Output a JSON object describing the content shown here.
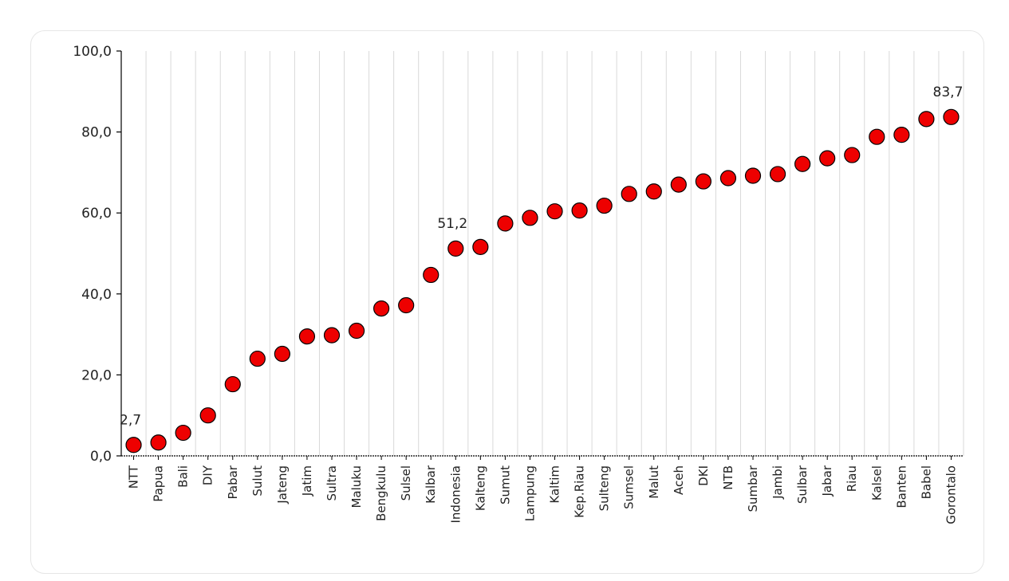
{
  "chart_data": {
    "type": "scatter",
    "title": "",
    "xlabel": "",
    "ylabel": "",
    "ylim": [
      0,
      100
    ],
    "y_ticks": [
      "0,0",
      "20,0",
      "40,0",
      "60,0",
      "80,0",
      "100,0"
    ],
    "grid": "vertical",
    "marker_color": "#ee0000",
    "categories": [
      "NTT",
      "Papua",
      "Bali",
      "DIY",
      "Pabar",
      "Sulut",
      "Jateng",
      "Jatim",
      "Sultra",
      "Maluku",
      "Bengkulu",
      "Sulsel",
      "Kalbar",
      "Indonesia",
      "Kalteng",
      "Sumut",
      "Lampung",
      "Kaltim",
      "Kep.Riau",
      "Sulteng",
      "Sumsel",
      "Malut",
      "Aceh",
      "DKI",
      "NTB",
      "Sumbar",
      "Jambi",
      "Sulbar",
      "Jabar",
      "Riau",
      "Kalsel",
      "Banten",
      "Babel",
      "Gorontalo"
    ],
    "values": [
      2.7,
      3.3,
      5.7,
      10.0,
      17.7,
      24.0,
      25.2,
      29.5,
      29.8,
      30.9,
      36.4,
      37.2,
      44.7,
      51.2,
      51.6,
      57.4,
      58.8,
      60.4,
      60.6,
      61.8,
      64.7,
      65.3,
      67.0,
      67.8,
      68.6,
      69.2,
      69.6,
      72.1,
      73.5,
      74.3,
      78.8,
      79.3,
      83.2,
      83.7
    ],
    "data_labels": [
      {
        "index": 0,
        "text": "2,7"
      },
      {
        "index": 13,
        "text": "51,2"
      },
      {
        "index": 33,
        "text": "83,7"
      }
    ]
  }
}
